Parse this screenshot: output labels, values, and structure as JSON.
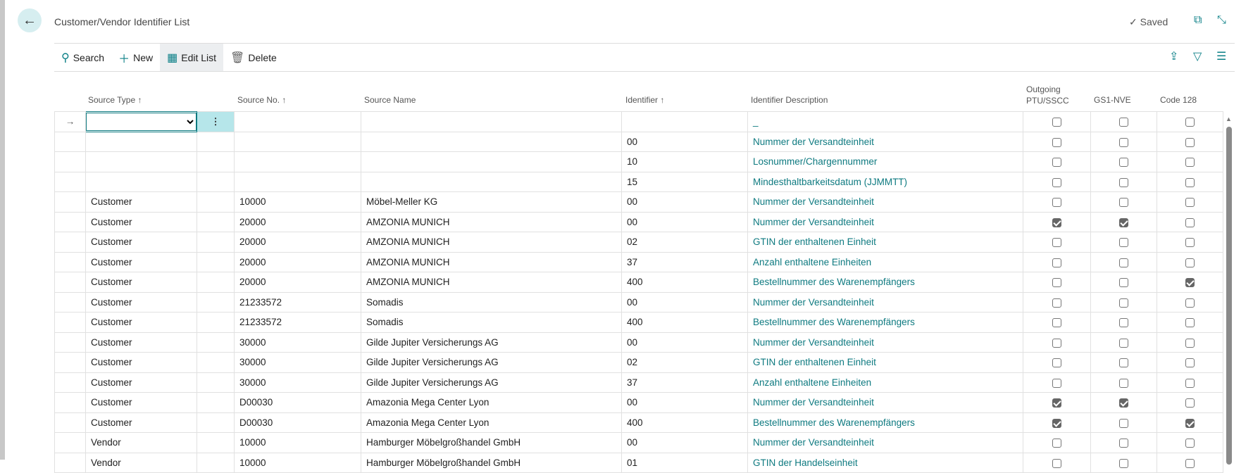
{
  "page": {
    "title": "Customer/Vendor Identifier List",
    "status": "Saved",
    "accent": "#0e7a80"
  },
  "toolbar": {
    "search": "Search",
    "new": "New",
    "edit_list": "Edit List",
    "delete": "Delete"
  },
  "columns": {
    "source_type": "Source Type ↑",
    "source_no": "Source No. ↑",
    "source_name": "Source Name",
    "identifier": "Identifier ↑",
    "identifier_description": "Identifier Description",
    "outgoing_1": "Outgoing",
    "outgoing_2": "PTU/SSCC",
    "gs1": "GS1-NVE",
    "code128": "Code 128"
  },
  "new_row": {
    "description": "_"
  },
  "rows": [
    {
      "type": "",
      "no": "",
      "name": "",
      "id": "00",
      "desc": "Nummer der Versandteinheit",
      "out": false,
      "gs1": false,
      "c128": false
    },
    {
      "type": "",
      "no": "",
      "name": "",
      "id": "10",
      "desc": "Losnummer/Chargennummer",
      "out": false,
      "gs1": false,
      "c128": false
    },
    {
      "type": "",
      "no": "",
      "name": "",
      "id": "15",
      "desc": "Mindesthaltbarkeitsdatum (JJMMTT)",
      "out": false,
      "gs1": false,
      "c128": false
    },
    {
      "type": "Customer",
      "no": "10000",
      "name": "Möbel-Meller KG",
      "id": "00",
      "desc": "Nummer der Versandteinheit",
      "out": false,
      "gs1": false,
      "c128": false
    },
    {
      "type": "Customer",
      "no": "20000",
      "name": "AMZONIA MUNICH",
      "id": "00",
      "desc": "Nummer der Versandteinheit",
      "out": true,
      "gs1": true,
      "c128": false
    },
    {
      "type": "Customer",
      "no": "20000",
      "name": "AMZONIA MUNICH",
      "id": "02",
      "desc": "GTIN der enthaltenen Einheit",
      "out": false,
      "gs1": false,
      "c128": false
    },
    {
      "type": "Customer",
      "no": "20000",
      "name": "AMZONIA MUNICH",
      "id": "37",
      "desc": "Anzahl enthaltene Einheiten",
      "out": false,
      "gs1": false,
      "c128": false
    },
    {
      "type": "Customer",
      "no": "20000",
      "name": "AMZONIA MUNICH",
      "id": "400",
      "desc": "Bestellnummer des Warenempfängers",
      "out": false,
      "gs1": false,
      "c128": true
    },
    {
      "type": "Customer",
      "no": "21233572",
      "name": "Somadis",
      "id": "00",
      "desc": "Nummer der Versandteinheit",
      "out": false,
      "gs1": false,
      "c128": false
    },
    {
      "type": "Customer",
      "no": "21233572",
      "name": "Somadis",
      "id": "400",
      "desc": "Bestellnummer des Warenempfängers",
      "out": false,
      "gs1": false,
      "c128": false
    },
    {
      "type": "Customer",
      "no": "30000",
      "name": "Gilde Jupiter Versicherungs AG",
      "id": "00",
      "desc": "Nummer der Versandteinheit",
      "out": false,
      "gs1": false,
      "c128": false
    },
    {
      "type": "Customer",
      "no": "30000",
      "name": "Gilde Jupiter Versicherungs AG",
      "id": "02",
      "desc": "GTIN der enthaltenen Einheit",
      "out": false,
      "gs1": false,
      "c128": false
    },
    {
      "type": "Customer",
      "no": "30000",
      "name": "Gilde Jupiter Versicherungs AG",
      "id": "37",
      "desc": "Anzahl enthaltene Einheiten",
      "out": false,
      "gs1": false,
      "c128": false
    },
    {
      "type": "Customer",
      "no": "D00030",
      "name": "Amazonia Mega Center Lyon",
      "id": "00",
      "desc": "Nummer der Versandteinheit",
      "out": true,
      "gs1": true,
      "c128": false
    },
    {
      "type": "Customer",
      "no": "D00030",
      "name": "Amazonia Mega Center Lyon",
      "id": "400",
      "desc": "Bestellnummer des Warenempfängers",
      "out": true,
      "gs1": false,
      "c128": true
    },
    {
      "type": "Vendor",
      "no": "10000",
      "name": "Hamburger Möbelgroßhandel GmbH",
      "id": "00",
      "desc": "Nummer der Versandteinheit",
      "out": false,
      "gs1": false,
      "c128": false
    },
    {
      "type": "Vendor",
      "no": "10000",
      "name": "Hamburger Möbelgroßhandel GmbH",
      "id": "01",
      "desc": "GTIN der Handelseinheit",
      "out": false,
      "gs1": false,
      "c128": false
    }
  ]
}
